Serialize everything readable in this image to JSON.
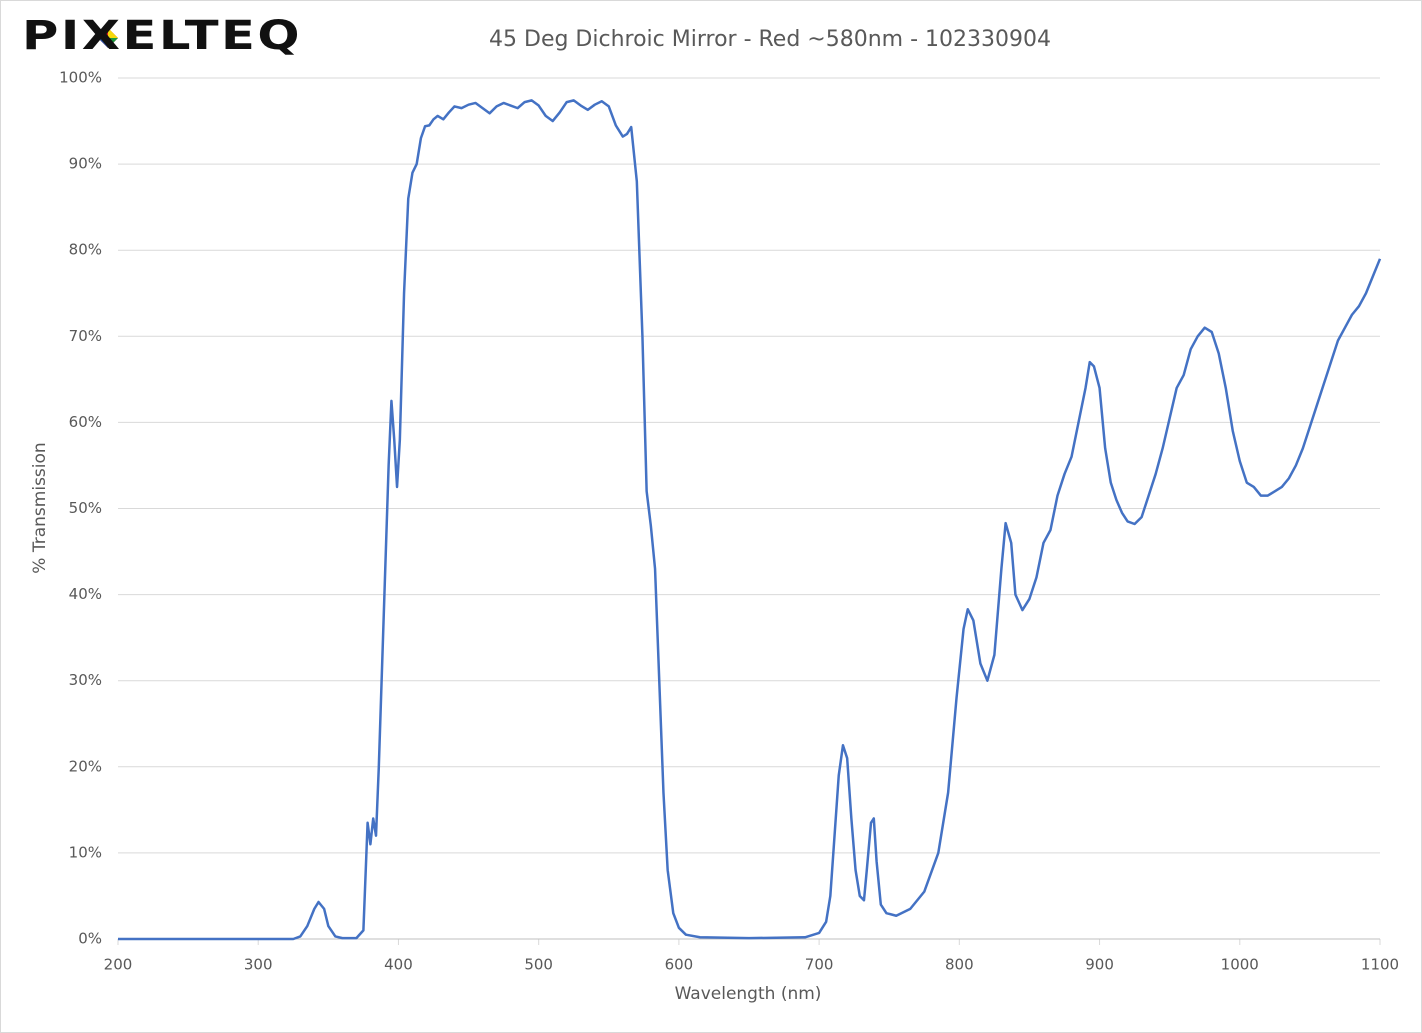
{
  "logo": "PIXELTEQ",
  "chart_data": {
    "type": "line",
    "title": "45 Deg Dichroic Mirror - Red ~580nm - 102330904",
    "x_label": "Wavelength (nm)",
    "y_label": "% Transmission",
    "xlim": [
      200,
      1100
    ],
    "xticks": [
      200,
      300,
      400,
      500,
      600,
      700,
      800,
      900,
      1000,
      1100
    ],
    "ylim": [
      0,
      100
    ],
    "yticks": [
      {
        "value": 0,
        "label": "0%"
      },
      {
        "value": 10,
        "label": "10%"
      },
      {
        "value": 20,
        "label": "20%"
      },
      {
        "value": 30,
        "label": "30%"
      },
      {
        "value": 40,
        "label": "40%"
      },
      {
        "value": 50,
        "label": "50%"
      },
      {
        "value": 60,
        "label": "60%"
      },
      {
        "value": 70,
        "label": "70%"
      },
      {
        "value": 80,
        "label": "80%"
      },
      {
        "value": 90,
        "label": "90%"
      },
      {
        "value": 100,
        "label": "100%"
      }
    ],
    "grid": true,
    "color": "#4472c4",
    "x": [
      200,
      250,
      300,
      325,
      330,
      335,
      340,
      343,
      347,
      350,
      355,
      360,
      370,
      375,
      378,
      380,
      382,
      384,
      386,
      390,
      393,
      395,
      397,
      399,
      401,
      404,
      407,
      410,
      413,
      416,
      419,
      422,
      425,
      428,
      432,
      436,
      440,
      445,
      450,
      455,
      460,
      465,
      470,
      475,
      480,
      485,
      490,
      495,
      500,
      505,
      510,
      515,
      520,
      525,
      530,
      535,
      540,
      545,
      550,
      555,
      560,
      563,
      566,
      570,
      574,
      577,
      580,
      583,
      586,
      589,
      592,
      596,
      600,
      605,
      615,
      650,
      690,
      700,
      705,
      708,
      711,
      714,
      717,
      720,
      723,
      726,
      729,
      732,
      734,
      737,
      739,
      741,
      744,
      748,
      755,
      765,
      775,
      785,
      792,
      798,
      803,
      806,
      810,
      815,
      820,
      825,
      830,
      833,
      837,
      840,
      845,
      850,
      855,
      860,
      865,
      870,
      875,
      880,
      885,
      890,
      893,
      896,
      900,
      904,
      908,
      912,
      916,
      920,
      925,
      930,
      935,
      940,
      945,
      950,
      955,
      960,
      965,
      970,
      975,
      980,
      985,
      990,
      995,
      1000,
      1005,
      1010,
      1015,
      1020,
      1025,
      1030,
      1035,
      1040,
      1045,
      1050,
      1055,
      1060,
      1065,
      1070,
      1075,
      1080,
      1085,
      1090,
      1095,
      1100
    ],
    "values": [
      0,
      0,
      0,
      0,
      0.3,
      1.5,
      3.5,
      4.3,
      3.5,
      1.5,
      0.3,
      0.1,
      0.1,
      1,
      13.5,
      11,
      14,
      12,
      20,
      40,
      55,
      62.5,
      58,
      52.5,
      58,
      75,
      86,
      89,
      90,
      93,
      94.4,
      94.5,
      95.2,
      95.6,
      95.2,
      96,
      96.7,
      96.5,
      96.9,
      97.1,
      96.5,
      95.9,
      96.7,
      97.1,
      96.8,
      96.5,
      97.2,
      97.4,
      96.8,
      95.6,
      95,
      96,
      97.2,
      97.4,
      96.8,
      96.3,
      96.9,
      97.3,
      96.7,
      94.5,
      93.2,
      93.5,
      94.3,
      88,
      70,
      52,
      48,
      43,
      30,
      17,
      8,
      3,
      1.3,
      0.5,
      0.2,
      0.1,
      0.2,
      0.7,
      2,
      5,
      12,
      19,
      22.5,
      21,
      14,
      8,
      5,
      4.5,
      8,
      13.5,
      14,
      9,
      4,
      3,
      2.7,
      3.5,
      5.5,
      10,
      17,
      28,
      36,
      38.3,
      37,
      32,
      30,
      33,
      43,
      48.3,
      46,
      40,
      38.2,
      39.5,
      42,
      46,
      47.5,
      51.5,
      54,
      56,
      60,
      64,
      67,
      66.5,
      64,
      57,
      53,
      51,
      49.5,
      48.5,
      48.2,
      49,
      51.5,
      54,
      57,
      60.5,
      64,
      65.5,
      68.5,
      70,
      71,
      70.5,
      68,
      64,
      59,
      55.5,
      53,
      52.5,
      51.5,
      51.5,
      52,
      52.5,
      53.5,
      55,
      57,
      59.5,
      62,
      64.5,
      67,
      69.5,
      71,
      72.5,
      73.5,
      75,
      77,
      79
    ]
  }
}
